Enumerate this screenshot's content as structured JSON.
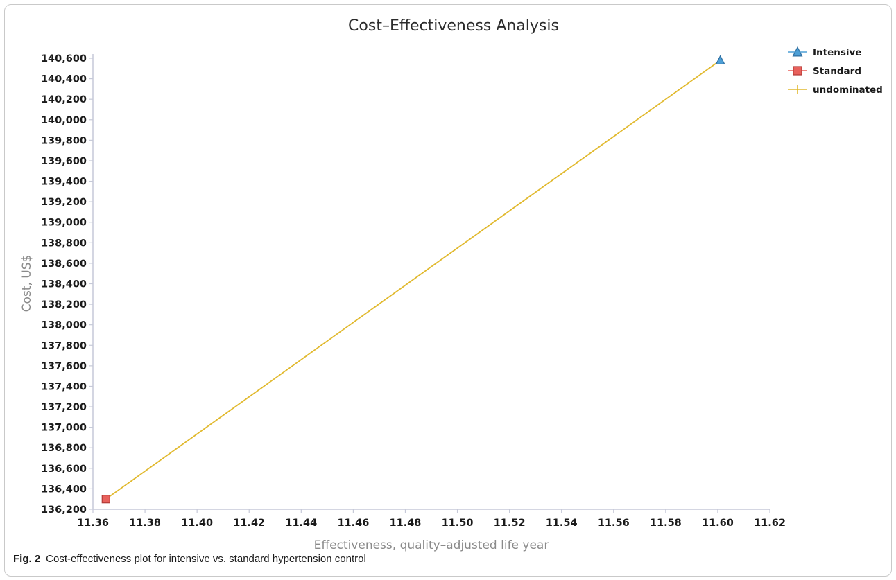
{
  "chart_data": {
    "type": "line",
    "title": "Cost–Effectiveness Analysis",
    "xlabel": "Effectiveness, quality–adjusted life year",
    "ylabel": "Cost, US$",
    "xlim": [
      11.36,
      11.62
    ],
    "ylim": [
      136200,
      140600
    ],
    "x_ticks": [
      "11.36",
      "11.38",
      "11.40",
      "11.42",
      "11.44",
      "11.46",
      "11.48",
      "11.50",
      "11.52",
      "11.54",
      "11.56",
      "11.58",
      "11.60",
      "11.62"
    ],
    "y_ticks": [
      "136,200",
      "136,400",
      "136,600",
      "136,800",
      "137,000",
      "137,200",
      "137,400",
      "137,600",
      "137,800",
      "138,000",
      "138,200",
      "138,400",
      "138,600",
      "138,800",
      "139,000",
      "139,200",
      "139,400",
      "139,600",
      "139,800",
      "140,000",
      "140,200",
      "140,400",
      "140,600"
    ],
    "legend_position": "top-right",
    "series": [
      {
        "name": "Intensive",
        "marker": "triangle",
        "color": "#4d9fd6",
        "x": [
          11.601
        ],
        "y": [
          140580
        ]
      },
      {
        "name": "Standard",
        "marker": "square",
        "color": "#e8615c",
        "x": [
          11.365
        ],
        "y": [
          136300
        ]
      },
      {
        "name": "undominated",
        "marker": "line",
        "color": "#e1b92e",
        "x": [
          11.365,
          11.601
        ],
        "y": [
          136300,
          140580
        ]
      }
    ]
  },
  "caption": {
    "label": "Fig. 2",
    "text": "Cost-effectiveness plot for intensive vs. standard hypertension control"
  }
}
